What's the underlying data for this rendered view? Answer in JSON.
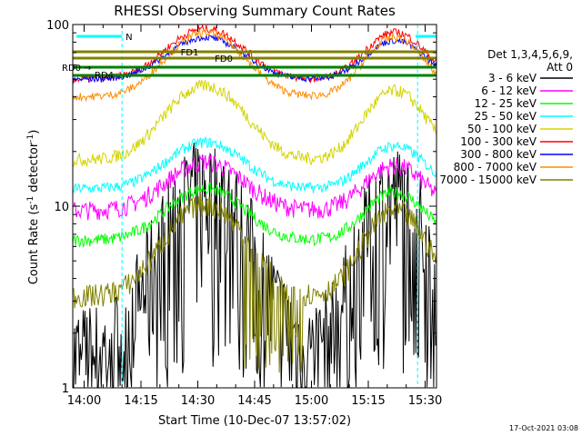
{
  "chart_data": {
    "type": "line",
    "title": "RHESSI Observing Summary Count Rates",
    "xlabel": "Start Time (10-Dec-07 13:57:02)",
    "ylabel_main": "Count Rate (s",
    "ylabel_sup1": "-1",
    "ylabel_mid": " detector",
    "ylabel_sup2": "-1",
    "ylabel_end": ")",
    "y_scale": "log",
    "ylim": [
      1,
      100
    ],
    "xlim_minutes": [
      -3,
      38
    ],
    "x_tick_minutes": [
      0,
      15,
      30,
      45,
      60,
      75,
      90
    ],
    "x_tick_labels": [
      "14:00",
      "14:15",
      "14:30",
      "14:45",
      "15:00",
      "15:15",
      "15:30"
    ],
    "y_tick_values": [
      1,
      10,
      100
    ],
    "y_tick_labels": [
      "1",
      "10",
      "100"
    ],
    "legend_header": [
      "Det 1,3,4,5,6,9,",
      "Att 0"
    ],
    "legend_placement": "right",
    "stamp": "17-Oct-2021 03:08",
    "annotations": {
      "N": "N",
      "FD1": "FD1",
      "FD0": "FD0",
      "RD0": "RD0",
      "RD4": "RD4",
      "arrow": "→"
    },
    "flag_bars": [
      {
        "label": "N",
        "color": "#00ffff",
        "start_min": -2,
        "end_min": 10
      },
      {
        "label": "N",
        "color": "#00ffff",
        "start_min": 87.5,
        "end_min": 94
      },
      {
        "label": "FD1",
        "color": "#808000",
        "start_min": -3,
        "end_min": 94
      },
      {
        "label": "FD0",
        "color": "#808000",
        "start_min": -3,
        "end_min": 94
      },
      {
        "label": "RD0",
        "color": "#008000",
        "start_min": -3,
        "end_min": 94
      },
      {
        "label": "RD4",
        "color": "#008000",
        "start_min": -3,
        "end_min": 94
      }
    ],
    "night_markers_min": [
      10,
      88
    ],
    "series": [
      {
        "name": "3 - 6 keV",
        "color": "#000000"
      },
      {
        "name": "6 - 12 keV",
        "color": "#ff00ff"
      },
      {
        "name": "12 - 25 keV",
        "color": "#00ff00"
      },
      {
        "name": "25 - 50 keV",
        "color": "#00ffff"
      },
      {
        "name": "50 - 100 keV",
        "color": "#d4d400"
      },
      {
        "name": "100 - 300 keV",
        "color": "#ff0000"
      },
      {
        "name": "300 - 800 keV",
        "color": "#0000ff"
      },
      {
        "name": "800 - 7000 keV",
        "color": "#ff8c00"
      },
      {
        "name": "7000 - 15000 keV",
        "color": "#808000"
      }
    ]
  }
}
